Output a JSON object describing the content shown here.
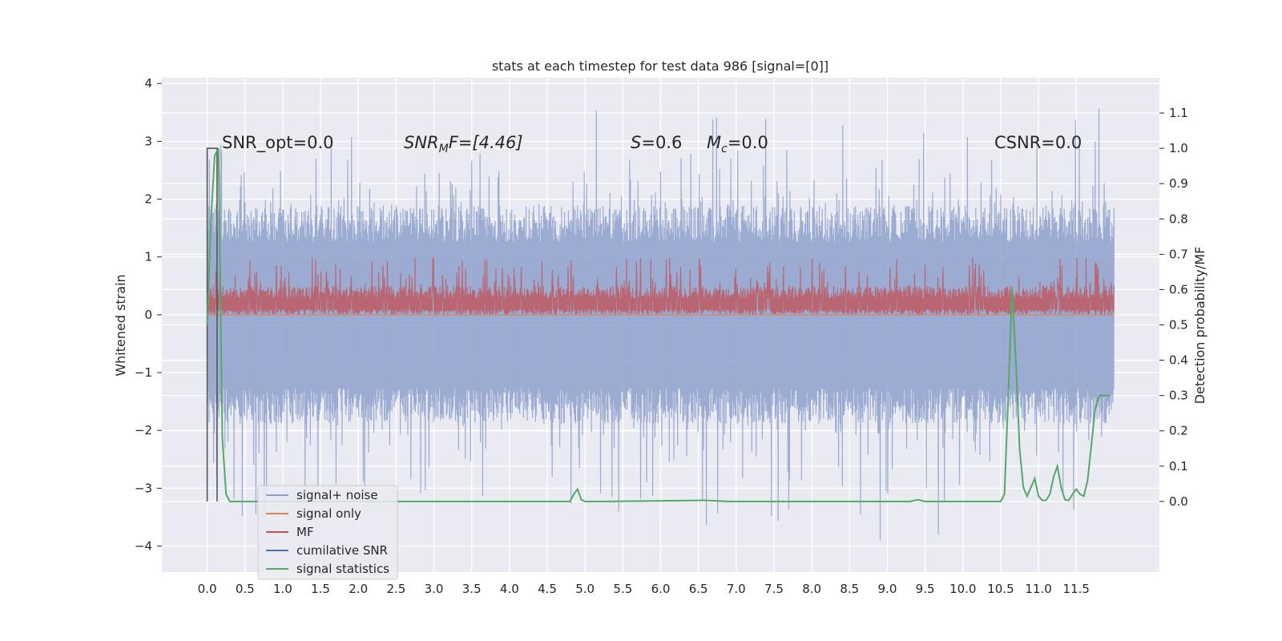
{
  "chart_data": {
    "type": "line",
    "title": "stats at each timestep for test data 986 [signal=[0]]",
    "xlabel": "",
    "ylabel": "Whitened strain",
    "ylabel_right": "Detection probability/MF",
    "xlim": [
      -0.6,
      12.6
    ],
    "ylim": [
      -4.45,
      4.1
    ],
    "ylim_right": [
      -0.2,
      1.2
    ],
    "x_ticks": [
      "0.0",
      "0.5",
      "1.0",
      "1.5",
      "2.0",
      "2.5",
      "3.0",
      "3.5",
      "4.0",
      "4.5",
      "5.0",
      "5.5",
      "6.0",
      "6.5",
      "7.0",
      "7.5",
      "8.0",
      "8.5",
      "9.0",
      "9.5",
      "10.0",
      "10.5",
      "11.0",
      "11.5"
    ],
    "y_ticks_left": [
      "4",
      "3",
      "2",
      "1",
      "0",
      "−1",
      "−2",
      "−3",
      "−4"
    ],
    "y_ticks_right": [
      "1.1",
      "1.0",
      "0.9",
      "0.8",
      "0.7",
      "0.6",
      "0.5",
      "0.4",
      "0.3",
      "0.2",
      "0.1",
      "0.0"
    ],
    "grid": true,
    "legend_position": "lower-left",
    "annotations": {
      "snr_opt": "SNR_opt=0.0",
      "snr_mf_base": "SNR",
      "snr_mf_sub": "M",
      "snr_mf_rest": "F=[4.46]",
      "s_sym": "S",
      "s_val": "=0.6",
      "mc_sym": "M",
      "mc_sub": "c",
      "mc_val": "=0.0",
      "csnr": "CSNR=0.0"
    },
    "legend": [
      {
        "label": "signal+ noise",
        "color": "#8da0cb"
      },
      {
        "label": "signal only",
        "color": "#dd8452"
      },
      {
        "label": "MF",
        "color": "#c44e52"
      },
      {
        "label": "cumilative SNR",
        "color": "#4c72b0"
      },
      {
        "label": "signal statistics",
        "color": "#55a868"
      }
    ],
    "series": [
      {
        "name": "signal+ noise",
        "axis": "left",
        "color": "#8da0cb",
        "pattern": "noise",
        "x_range": [
          0.0,
          12.0
        ],
        "typical_range": [
          -1.8,
          1.8
        ],
        "extremes": [
          -4.1,
          3.75
        ]
      },
      {
        "name": "MF",
        "axis": "left",
        "color": "#c44e52",
        "pattern": "noise",
        "x_range": [
          0.0,
          12.0
        ],
        "typical_range": [
          0.0,
          0.5
        ],
        "extremes": [
          0.0,
          1.0
        ]
      },
      {
        "name": "signal only",
        "axis": "left",
        "color": "#dd8452",
        "x": [
          0.0,
          12.0
        ],
        "y": [
          0.0,
          0.0
        ]
      },
      {
        "name": "cumilative SNR",
        "axis": "right",
        "color": "#4c72b0",
        "x": [
          0.0,
          0.0,
          0.13,
          0.13
        ],
        "y": [
          0.0,
          1.0,
          1.0,
          0.0
        ]
      },
      {
        "name": "signal statistics",
        "axis": "right",
        "color": "#55a868",
        "x": [
          0.0,
          0.05,
          0.1,
          0.15,
          0.2,
          0.25,
          0.3,
          0.35,
          4.8,
          4.85,
          4.9,
          4.95,
          5.0,
          5.2,
          6.6,
          6.9,
          7.0,
          7.3,
          9.3,
          9.4,
          9.5,
          10.5,
          10.55,
          10.6,
          10.65,
          10.7,
          10.75,
          10.8,
          10.85,
          10.9,
          10.95,
          11.0,
          11.05,
          11.1,
          11.15,
          11.2,
          11.25,
          11.3,
          11.35,
          11.4,
          11.45,
          11.5,
          11.55,
          11.6,
          11.65,
          11.7,
          11.75,
          11.8,
          11.85,
          11.9,
          11.95
        ],
        "y": [
          0.5,
          0.8,
          0.98,
          1.0,
          0.18,
          0.02,
          0.0,
          0.0,
          0.0,
          0.02,
          0.035,
          0.005,
          0.0,
          0.0,
          0.003,
          0.0,
          0.0,
          0.0,
          0.0,
          0.005,
          0.0,
          0.0,
          0.02,
          0.3,
          0.6,
          0.4,
          0.15,
          0.04,
          0.015,
          0.04,
          0.065,
          0.015,
          0.003,
          0.003,
          0.02,
          0.07,
          0.1,
          0.04,
          0.005,
          0.003,
          0.02,
          0.035,
          0.02,
          0.015,
          0.06,
          0.16,
          0.26,
          0.3,
          0.3,
          0.3,
          0.3
        ]
      }
    ]
  }
}
